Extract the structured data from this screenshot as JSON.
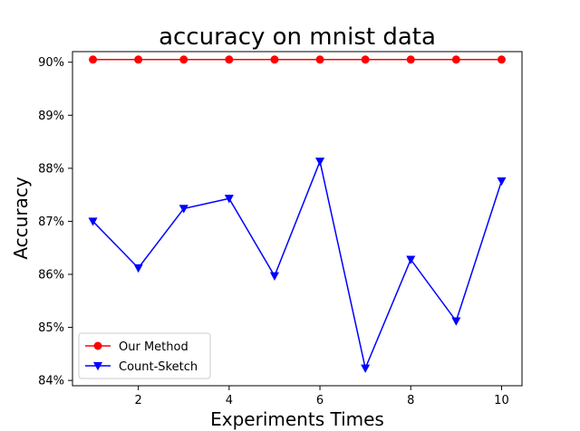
{
  "chart_data": {
    "type": "line",
    "title": "accuracy on mnist data",
    "xlabel": "Experiments Times",
    "ylabel": "Accuracy",
    "x": [
      1,
      2,
      3,
      4,
      5,
      6,
      7,
      8,
      9,
      10
    ],
    "xticks": [
      2,
      4,
      6,
      8,
      10
    ],
    "xtick_labels": [
      "2",
      "4",
      "6",
      "8",
      "10"
    ],
    "yticks": [
      84,
      85,
      86,
      87,
      88,
      89,
      90
    ],
    "ytick_labels": [
      "84%",
      "85%",
      "86%",
      "87%",
      "88%",
      "89%",
      "90%"
    ],
    "xlim": [
      0.55,
      10.45
    ],
    "ylim": [
      83.9,
      90.2
    ],
    "grid": false,
    "legend_position": "lower-left",
    "series": [
      {
        "name": "Our Method",
        "values": [
          90.05,
          90.05,
          90.05,
          90.05,
          90.05,
          90.05,
          90.05,
          90.05,
          90.05,
          90.05
        ],
        "color": "#ff0000",
        "marker": "circle"
      },
      {
        "name": "Count-Sketch",
        "values": [
          87.0,
          86.12,
          87.24,
          87.43,
          85.97,
          88.13,
          84.23,
          86.28,
          85.12,
          87.76
        ],
        "color": "#0000ff",
        "marker": "triangle-down"
      }
    ]
  }
}
